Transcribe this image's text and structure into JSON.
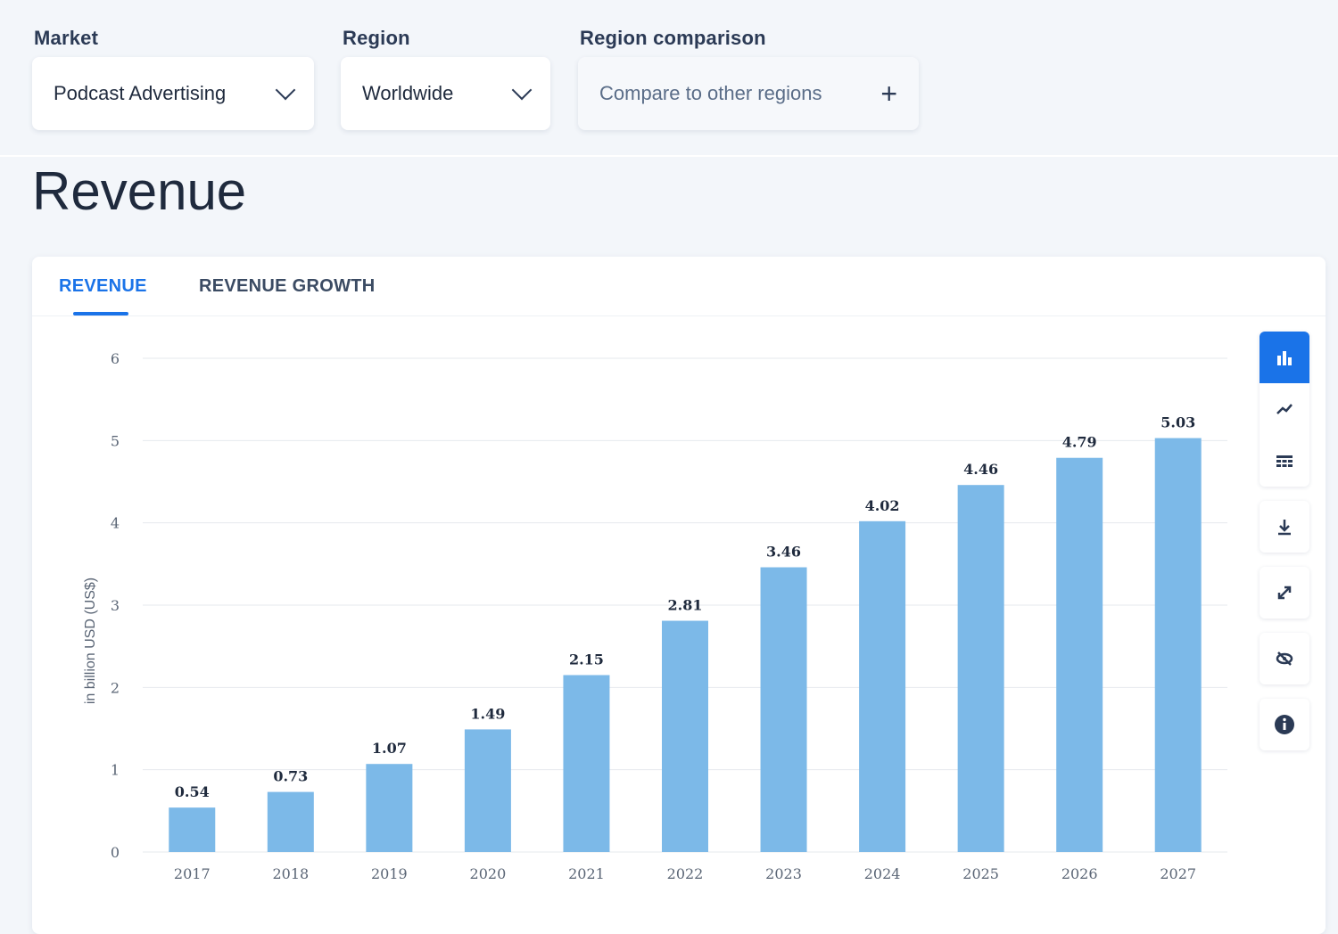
{
  "filters": {
    "market": {
      "label": "Market",
      "value": "Podcast Advertising"
    },
    "region": {
      "label": "Region",
      "value": "Worldwide"
    },
    "comparison": {
      "label": "Region comparison",
      "placeholder": "Compare to other regions"
    }
  },
  "page_title": "Revenue",
  "tabs": [
    {
      "label": "REVENUE",
      "active": true
    },
    {
      "label": "REVENUE GROWTH",
      "active": false
    }
  ],
  "colors": {
    "accent": "#1a73e8",
    "bar": "#7cb9e8",
    "grid": "#e6e9ee"
  },
  "toolbar": {
    "icons": [
      "bar-chart-icon",
      "line-chart-icon",
      "table-icon",
      "download-icon",
      "expand-icon",
      "hide-icon",
      "info-icon"
    ]
  },
  "chart_data": {
    "type": "bar",
    "categories": [
      "2017",
      "2018",
      "2019",
      "2020",
      "2021",
      "2022",
      "2023",
      "2024",
      "2025",
      "2026",
      "2027"
    ],
    "values": [
      0.54,
      0.73,
      1.07,
      1.49,
      2.15,
      2.81,
      3.46,
      4.02,
      4.46,
      4.79,
      5.03
    ],
    "value_labels": [
      "0.54",
      "0.73",
      "1.07",
      "1.49",
      "2.15",
      "2.81",
      "3.46",
      "4.02",
      "4.46",
      "4.79",
      "5.03"
    ],
    "yticks": [
      "0",
      "1",
      "2",
      "3",
      "4",
      "5",
      "6"
    ],
    "ylim": [
      0,
      6
    ],
    "ylabel": "in billion USD (US$)",
    "xlabel": "",
    "grid": true
  }
}
